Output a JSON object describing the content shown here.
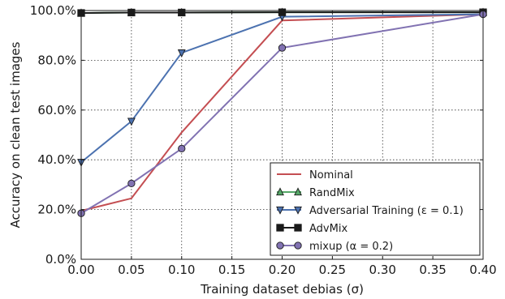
{
  "chart_data": {
    "type": "line",
    "xlabel": "Training dataset debias (σ)",
    "ylabel": "Accuracy on clean test images",
    "x": [
      0.0,
      0.05,
      0.1,
      0.2,
      0.4
    ],
    "xlim": [
      0.0,
      0.4
    ],
    "ylim": [
      0,
      100
    ],
    "x_ticks": [
      "0.00",
      "0.05",
      "0.10",
      "0.15",
      "0.20",
      "0.25",
      "0.30",
      "0.35",
      "0.40"
    ],
    "x_tick_values": [
      0.0,
      0.05,
      0.1,
      0.15,
      0.2,
      0.25,
      0.3,
      0.35,
      0.4
    ],
    "y_ticks": [
      "0.0%",
      "20.0%",
      "40.0%",
      "60.0%",
      "80.0%",
      "100.0%"
    ],
    "y_tick_values": [
      0,
      20,
      40,
      60,
      80,
      100
    ],
    "grid": true,
    "legend_position": "bottom-right",
    "series": [
      {
        "name": "Nominal",
        "values": [
          19.5,
          24.5,
          51.0,
          96.0,
          98.5
        ],
        "color": "#c44e52",
        "marker": "none"
      },
      {
        "name": "RandMix",
        "values": [
          99.0,
          99.2,
          99.2,
          99.3,
          99.3
        ],
        "color": "#55a868",
        "marker": "triangle-up"
      },
      {
        "name": "Adversarial Training (ε = 0.1)",
        "values": [
          39.0,
          55.5,
          83.0,
          97.5,
          98.5
        ],
        "color": "#4c72b0",
        "marker": "triangle-down"
      },
      {
        "name": "AdvMix",
        "values": [
          99.0,
          99.2,
          99.2,
          99.3,
          99.3
        ],
        "color": "#1a1a1a",
        "marker": "square"
      },
      {
        "name": "mixup (α = 0.2)",
        "values": [
          18.5,
          30.5,
          44.5,
          85.0,
          98.5
        ],
        "color": "#8172b2",
        "marker": "circle"
      }
    ]
  }
}
